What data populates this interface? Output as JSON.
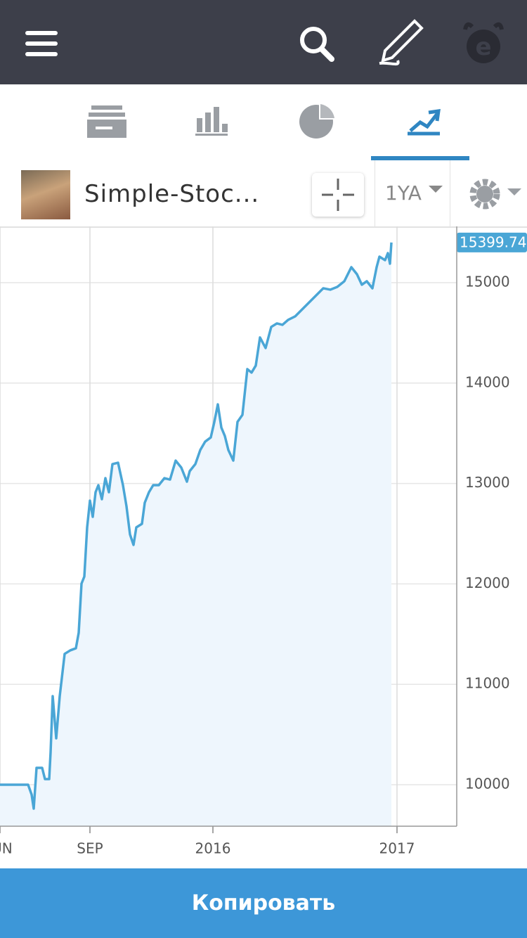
{
  "toolbar": {
    "name": "Simple-Stoc...",
    "period": "1YA"
  },
  "button": {
    "label": "Копировать"
  },
  "chart_data": {
    "type": "area",
    "x": [
      0,
      10,
      11.25,
      12,
      13,
      15,
      16,
      17.5,
      18,
      18.75,
      20,
      21.25,
      23,
      25,
      27,
      28,
      29,
      30,
      31,
      32,
      33,
      34,
      35,
      36.25,
      37.5,
      38.75,
      40,
      42,
      43.75,
      45,
      46.25,
      47.5,
      48.5,
      50.5,
      51.5,
      53,
      54.5,
      56.5,
      58.5,
      60.5,
      62.5,
      64.5,
      66.5,
      67.5,
      69.5,
      71.25,
      73,
      75,
      76.25,
      77.5,
      78.75,
      80,
      81.25,
      83,
      84.5,
      86.25,
      88,
      89.5,
      91,
      92.5,
      94.5,
      96.5,
      98.5,
      100.5,
      102.5,
      105,
      107.5,
      110,
      112.5,
      115,
      117.5,
      120,
      122.5,
      125,
      127,
      128.75,
      130.5,
      132.5,
      134,
      135,
      137,
      138,
      138.75,
      139.25
    ],
    "values": [
      10000,
      10000,
      9902,
      9762,
      10168,
      10168,
      10056,
      10056,
      10322,
      10882,
      10462,
      10882,
      11303,
      11338,
      11359,
      11513,
      12003,
      12073,
      12563,
      12829,
      12668,
      12913,
      12983,
      12843,
      13053,
      12913,
      13193,
      13207,
      12983,
      12773,
      12493,
      12388,
      12563,
      12598,
      12808,
      12913,
      12983,
      12983,
      13053,
      13039,
      13228,
      13158,
      13018,
      13123,
      13193,
      13333,
      13417,
      13459,
      13613,
      13788,
      13557,
      13473,
      13333,
      13228,
      13613,
      13683,
      14139,
      14104,
      14174,
      14454,
      14349,
      14559,
      14594,
      14580,
      14629,
      14664,
      14734,
      14804,
      14874,
      14944,
      14930,
      14958,
      15014,
      15154,
      15084,
      14979,
      15014,
      14944,
      15154,
      15259,
      15224,
      15294,
      15189,
      15399.74
    ],
    "color": "#4aa6d6",
    "xlim": [
      0,
      162.5
    ],
    "ylim": [
      9587,
      15560
    ],
    "xticks": [
      {
        "value": 0,
        "label": "JUN"
      },
      {
        "value": 32,
        "label": "SEP"
      },
      {
        "value": 75.75,
        "label": "2016"
      },
      {
        "value": 141.25,
        "label": "2017"
      }
    ],
    "yticks": [
      10000,
      11000,
      12000,
      13000,
      14000,
      15000
    ],
    "grid": true
  }
}
